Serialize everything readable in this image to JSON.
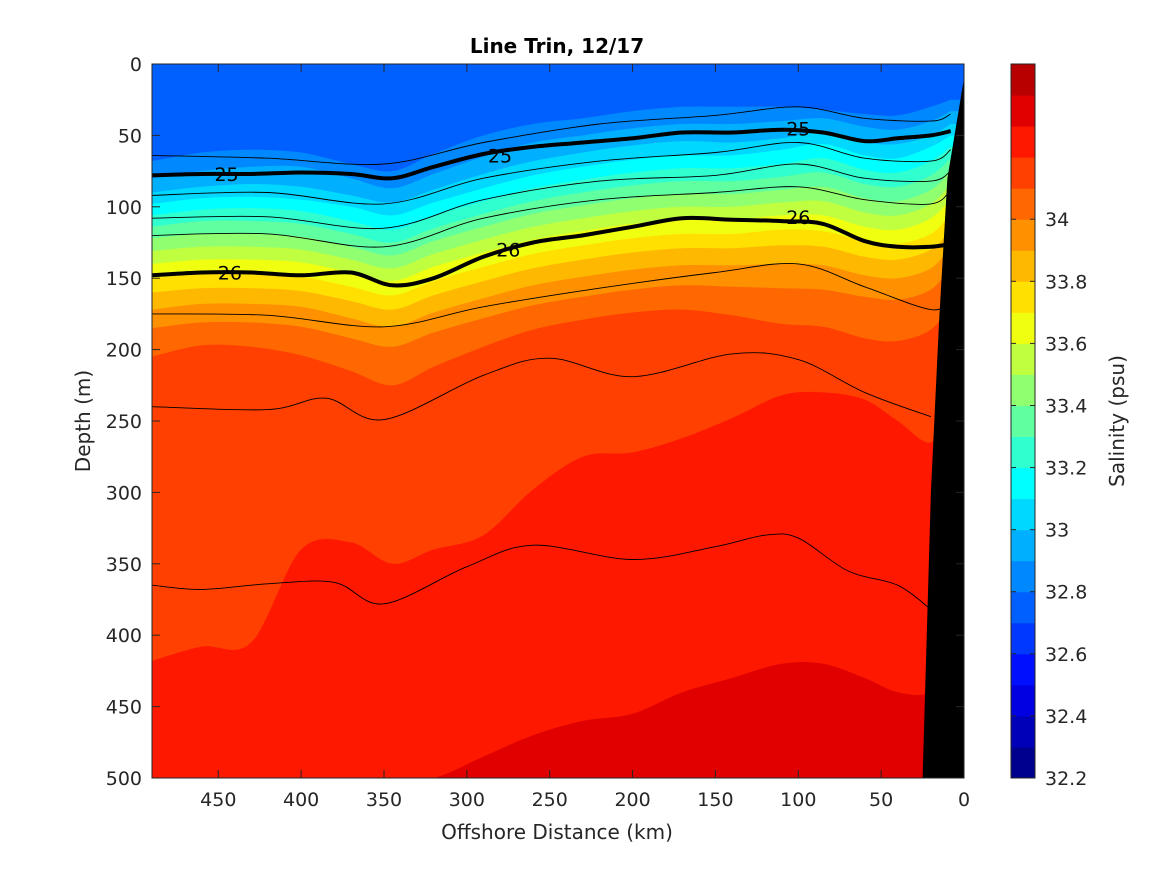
{
  "chart_data": {
    "type": "heatmap",
    "title": "Line Trin, 12/17",
    "xlabel": "Offshore Distance (km)",
    "ylabel": "Depth (m)",
    "colorbar_label": "Salinity (psu)",
    "xlim": [
      490,
      0
    ],
    "ylim": [
      0,
      500
    ],
    "x_reversed": true,
    "y_reversed": true,
    "xticks": [
      450,
      400,
      350,
      300,
      250,
      200,
      150,
      100,
      50,
      0
    ],
    "yticks": [
      0,
      50,
      100,
      150,
      200,
      250,
      300,
      350,
      400,
      450,
      500
    ],
    "colorbar_range": [
      32.2,
      34.5
    ],
    "colorbar_ticks": [
      32.2,
      32.4,
      32.6,
      32.8,
      33,
      33.2,
      33.4,
      33.6,
      33.8,
      34
    ],
    "colorbar_tick_labels": [
      "32.2",
      "32.4",
      "32.6",
      "32.8",
      "33",
      "33.2",
      "33.4",
      "33.6",
      "33.8",
      "34"
    ],
    "colorbar_levels": [
      32.2,
      32.3,
      32.4,
      32.5,
      32.6,
      32.7,
      32.8,
      32.9,
      33.0,
      33.1,
      33.2,
      33.3,
      33.4,
      33.5,
      33.6,
      33.7,
      33.8,
      33.9,
      34.0,
      34.1,
      34.2,
      34.3,
      34.4,
      34.5
    ],
    "colormap": [
      "#00008f",
      "#0000b8",
      "#0000e0",
      "#0010ff",
      "#0038ff",
      "#0060ff",
      "#0088ff",
      "#00b0ff",
      "#00d8ff",
      "#00ffff",
      "#30ffd0",
      "#60ffa0",
      "#90ff70",
      "#c0ff40",
      "#f0ff10",
      "#ffe000",
      "#ffb800",
      "#ff9000",
      "#ff6800",
      "#ff4000",
      "#ff1800",
      "#e00000",
      "#b80000",
      "#8f0000"
    ],
    "x_profile": [
      490,
      460,
      430,
      400,
      370,
      345,
      320,
      290,
      260,
      230,
      200,
      170,
      140,
      110,
      85,
      60,
      40,
      20,
      8
    ],
    "salinity_bands": [
      {
        "value": 32.65,
        "color": "#0060ff",
        "depth": [
          52,
          45,
          42,
          40,
          55,
          60,
          45,
          20,
          15,
          22,
          15,
          10,
          12,
          15,
          18,
          22,
          20,
          15,
          10
        ]
      },
      {
        "value": 32.75,
        "color": "#0088ff",
        "depth": [
          68,
          62,
          60,
          62,
          70,
          75,
          63,
          50,
          42,
          38,
          33,
          30,
          30,
          30,
          32,
          35,
          36,
          30,
          25
        ]
      },
      {
        "value": 32.85,
        "color": "#00b0ff",
        "depth": [
          80,
          75,
          72,
          72,
          80,
          87,
          77,
          65,
          55,
          50,
          45,
          42,
          42,
          40,
          38,
          44,
          46,
          40,
          33
        ]
      },
      {
        "value": 32.95,
        "color": "#00d8ff",
        "depth": [
          90,
          86,
          84,
          86,
          92,
          97,
          88,
          77,
          68,
          62,
          57,
          54,
          55,
          52,
          48,
          55,
          56,
          50,
          42
        ]
      },
      {
        "value": 33.05,
        "color": "#00ffff",
        "depth": [
          98,
          94,
          93,
          95,
          100,
          106,
          97,
          87,
          78,
          72,
          67,
          64,
          64,
          60,
          56,
          64,
          66,
          58,
          50
        ]
      },
      {
        "value": 33.15,
        "color": "#30ffd0",
        "depth": [
          106,
          102,
          101,
          103,
          110,
          116,
          106,
          96,
          87,
          81,
          76,
          73,
          73,
          70,
          66,
          74,
          76,
          68,
          58
        ]
      },
      {
        "value": 33.25,
        "color": "#60ffa0",
        "depth": [
          114,
          110,
          110,
          112,
          119,
          125,
          115,
          105,
          96,
          90,
          85,
          82,
          82,
          79,
          76,
          84,
          86,
          78,
          66
        ]
      },
      {
        "value": 33.35,
        "color": "#90ff70",
        "depth": [
          122,
          119,
          119,
          121,
          128,
          134,
          124,
          114,
          105,
          99,
          94,
          91,
          91,
          88,
          86,
          94,
          96,
          88,
          75
        ]
      },
      {
        "value": 33.45,
        "color": "#c0ff40",
        "depth": [
          131,
          128,
          128,
          130,
          137,
          143,
          133,
          123,
          114,
          108,
          103,
          100,
          100,
          97,
          96,
          104,
          106,
          98,
          84
        ]
      },
      {
        "value": 33.55,
        "color": "#f0ff10",
        "depth": [
          140,
          137,
          137,
          139,
          146,
          152,
          142,
          132,
          123,
          117,
          112,
          109,
          109,
          106,
          106,
          114,
          116,
          108,
          94
        ]
      },
      {
        "value": 33.65,
        "color": "#ffe000",
        "depth": [
          150,
          147,
          147,
          149,
          156,
          162,
          152,
          142,
          133,
          127,
          122,
          119,
          119,
          116,
          117,
          124,
          126,
          119,
          105
        ]
      },
      {
        "value": 33.75,
        "color": "#ffb800",
        "depth": [
          160,
          157,
          157,
          159,
          166,
          172,
          162,
          152,
          143,
          137,
          132,
          129,
          129,
          127,
          128,
          135,
          137,
          130,
          116
        ]
      },
      {
        "value": 33.85,
        "color": "#ff9000",
        "depth": [
          172,
          168,
          168,
          170,
          178,
          184,
          174,
          164,
          155,
          149,
          144,
          141,
          141,
          140,
          141,
          148,
          150,
          143,
          128
        ]
      },
      {
        "value": 33.95,
        "color": "#ff6800",
        "depth": [
          185,
          181,
          181,
          184,
          192,
          198,
          188,
          178,
          169,
          163,
          158,
          155,
          156,
          157,
          158,
          163,
          165,
          158,
          142
        ]
      },
      {
        "value": 34.05,
        "color": "#ff4000",
        "depth": [
          205,
          197,
          198,
          204,
          215,
          225,
          212,
          198,
          186,
          179,
          174,
          172,
          176,
          182,
          184,
          192,
          194,
          186,
          168
        ]
      },
      {
        "value": 34.15,
        "color": "#ff1800",
        "depth": [
          418,
          408,
          405,
          340,
          335,
          350,
          340,
          330,
          298,
          275,
          272,
          262,
          248,
          232,
          230,
          235,
          250,
          265,
          240
        ]
      },
      {
        "value": 34.25,
        "color": "#e00000",
        "depth": [
          500,
          500,
          500,
          500,
          500,
          500,
          500,
          485,
          470,
          460,
          455,
          440,
          430,
          420,
          420,
          430,
          440,
          440,
          420
        ]
      }
    ],
    "thin_contours": [
      [
        490,
        64,
        420,
        66,
        350,
        70,
        290,
        55,
        220,
        42,
        150,
        36,
        100,
        30,
        60,
        38,
        20,
        40,
        8,
        35
      ],
      [
        490,
        92,
        420,
        90,
        350,
        98,
        290,
        80,
        220,
        68,
        150,
        62,
        100,
        55,
        60,
        66,
        20,
        68,
        8,
        60
      ],
      [
        490,
        108,
        420,
        107,
        350,
        115,
        290,
        95,
        220,
        82,
        150,
        78,
        100,
        70,
        60,
        80,
        20,
        82,
        8,
        75
      ],
      [
        490,
        120,
        420,
        119,
        350,
        128,
        290,
        108,
        220,
        95,
        150,
        90,
        100,
        86,
        60,
        95,
        20,
        98,
        8,
        88
      ],
      [
        490,
        175,
        420,
        176,
        350,
        184,
        290,
        170,
        220,
        157,
        150,
        146,
        100,
        140,
        60,
        156,
        20,
        172,
        8,
        165
      ],
      [
        490,
        240,
        420,
        242,
        385,
        234,
        350,
        249,
        290,
        218,
        250,
        206,
        200,
        219,
        140,
        203,
        100,
        207,
        60,
        230,
        20,
        247
      ],
      [
        490,
        365,
        460,
        368,
        420,
        364,
        380,
        363,
        350,
        378,
        300,
        352,
        260,
        337,
        200,
        347,
        150,
        338,
        120,
        330,
        100,
        332,
        70,
        355,
        40,
        365,
        20,
        382
      ]
    ],
    "contours": [
      {
        "label": "25",
        "depth": [
          78,
          77,
          77,
          76,
          77,
          80,
          72,
          63,
          58,
          55,
          52,
          48,
          48,
          46,
          48,
          54,
          52,
          50,
          47
        ]
      },
      {
        "label": "26",
        "depth": [
          148,
          146,
          146,
          148,
          146,
          155,
          150,
          135,
          125,
          120,
          114,
          108,
          109,
          110,
          112,
          124,
          128,
          128,
          126
        ]
      }
    ],
    "contour_labels": [
      {
        "text": "25",
        "x": 445,
        "y": 77
      },
      {
        "text": "25",
        "x": 280,
        "y": 64
      },
      {
        "text": "25",
        "x": 100,
        "y": 45
      },
      {
        "text": "26",
        "x": 443,
        "y": 146
      },
      {
        "text": "26",
        "x": 275,
        "y": 130
      },
      {
        "text": "26",
        "x": 100,
        "y": 107
      }
    ],
    "land_mask_color": "#000000",
    "land_boundary": [
      490,
      0,
      490,
      500,
      0,
      500,
      0,
      0,
      0,
      10,
      10,
      80,
      15,
      180,
      20,
      300,
      25,
      500
    ]
  }
}
